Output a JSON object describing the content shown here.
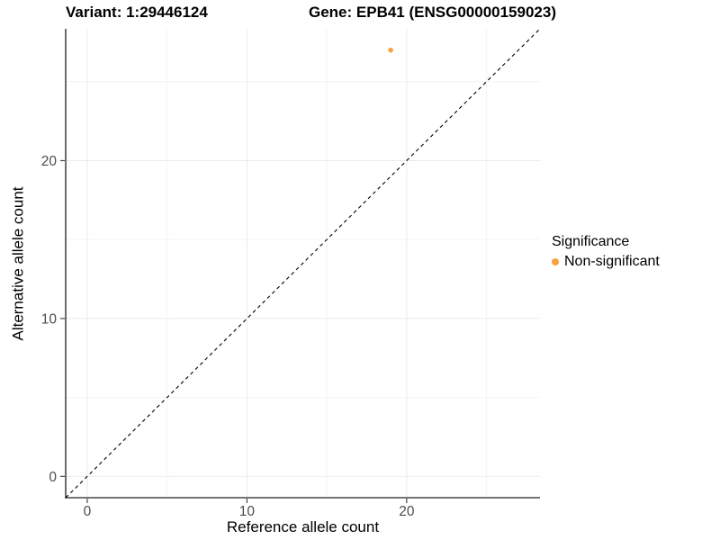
{
  "title": {
    "variant": "Variant: 1:29446124",
    "gene": "Gene: EPB41 (ENSG00000159023)"
  },
  "axes": {
    "x_label": "Reference allele count",
    "y_label": "Alternative allele count"
  },
  "legend": {
    "title": "Significance",
    "items": [
      {
        "label": "Non-significant",
        "color": "#f9a240"
      }
    ]
  },
  "colors": {
    "point_orange": "#f9a240",
    "axis_line": "#474747",
    "tick_label": "#4d4d4d",
    "grid_major": "#ebebeb",
    "grid_minor": "#f4f4f4",
    "abline": "#000000"
  },
  "chart_data": {
    "type": "scatter",
    "title": "Variant: 1:29446124   Gene: EPB41 (ENSG00000159023)",
    "xlabel": "Reference allele count",
    "ylabel": "Alternative allele count",
    "xlim": [
      -1.35,
      28.35
    ],
    "ylim": [
      -1.35,
      28.35
    ],
    "x_ticks": [
      0,
      10,
      20
    ],
    "y_ticks": [
      0,
      10,
      20
    ],
    "x_tick_labels": [
      "0",
      "10",
      "20"
    ],
    "y_tick_labels": [
      "0",
      "10",
      "20"
    ],
    "x_minor": [
      5,
      15,
      25
    ],
    "y_minor": [
      5,
      15,
      25
    ],
    "grid": true,
    "legend_position": "right",
    "abline": {
      "slope": 1,
      "intercept": 0,
      "style": "dashed",
      "color": "#000000"
    },
    "series": [
      {
        "name": "Non-significant",
        "color": "#f9a240",
        "points": [
          {
            "x": 19,
            "y": 27
          }
        ]
      }
    ]
  }
}
